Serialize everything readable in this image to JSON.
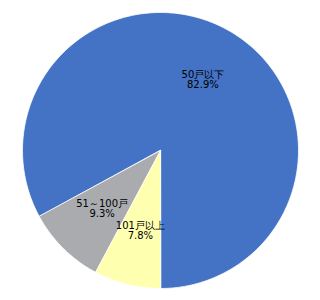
{
  "chart_data": {
    "type": "pie",
    "categories": [
      "50戸以下",
      "51～100戸",
      "101戸以上"
    ],
    "values": [
      82.9,
      9.3,
      7.8
    ],
    "value_labels": [
      "82.9%",
      "9.3%",
      "7.8%"
    ],
    "colors": [
      "#4472C4",
      "#A9ABAE",
      "#FFFFB0"
    ],
    "data_labels": true
  }
}
